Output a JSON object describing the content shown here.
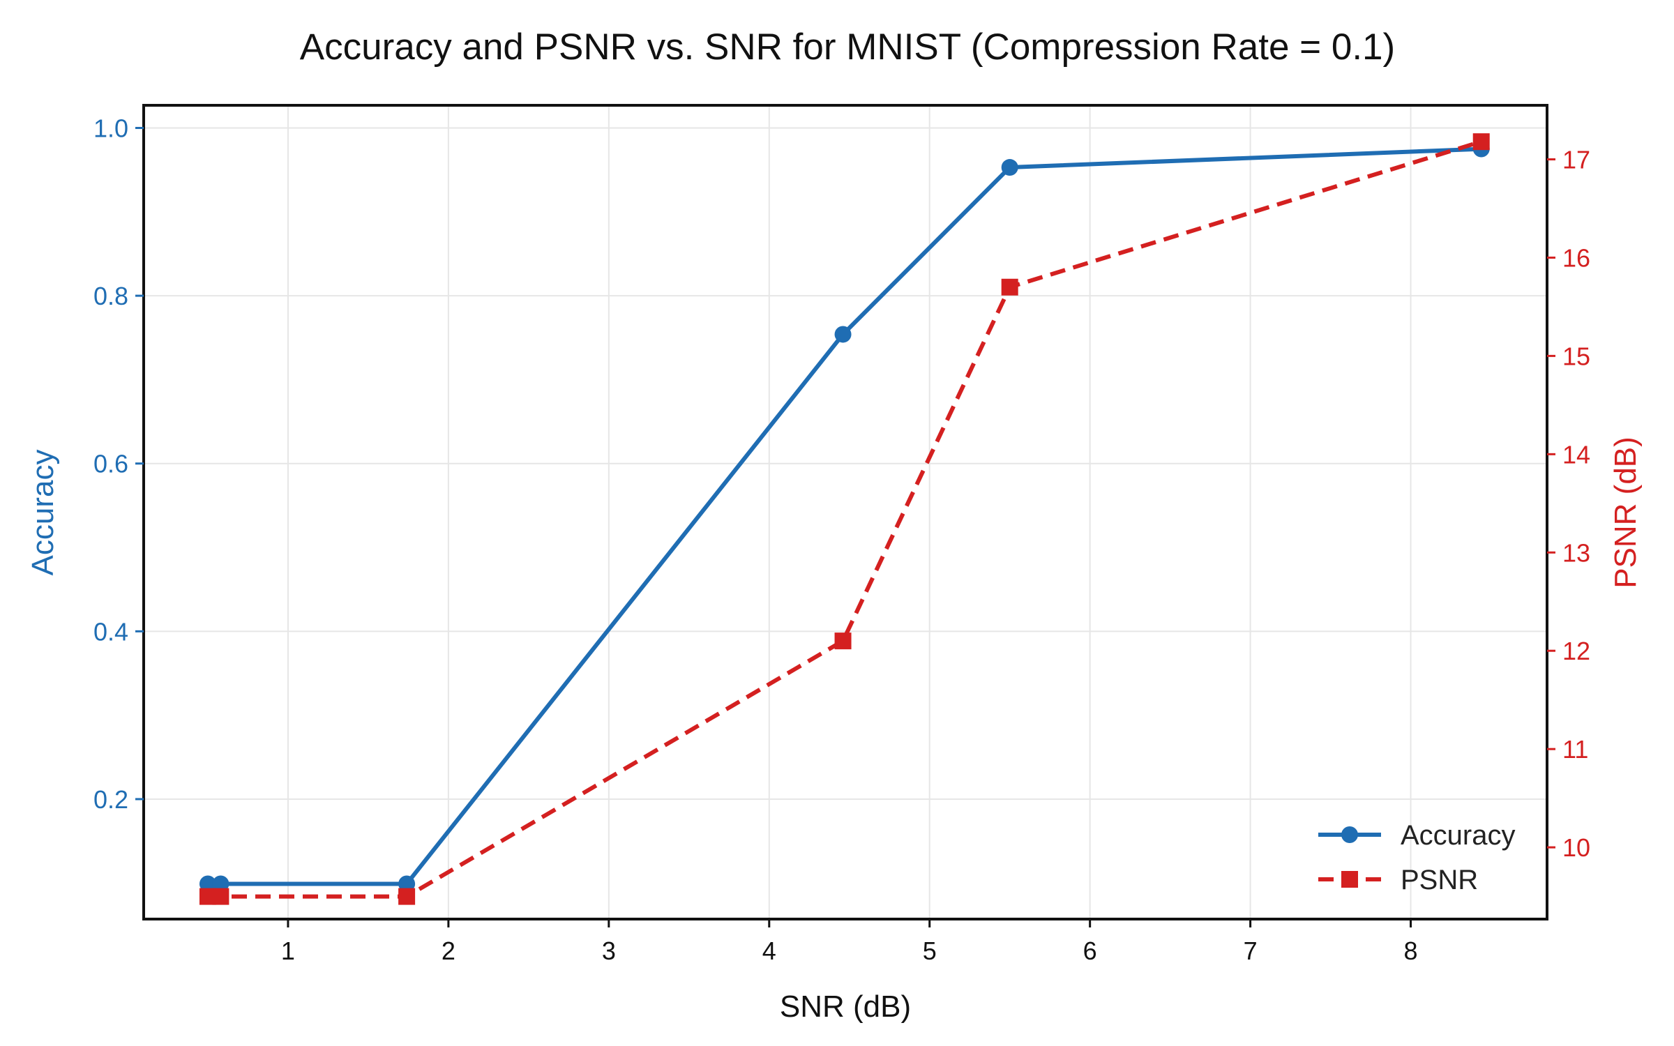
{
  "chart_data": {
    "type": "line",
    "title": "Accuracy and PSNR vs. SNR for MNIST (Compression Rate = 0.1)",
    "xlabel": "SNR (dB)",
    "ylabel_left": "Accuracy",
    "ylabel_right": "PSNR (dB)",
    "xlim": [
      0.1,
      8.85
    ],
    "ylim_left": [
      0.057,
      1.027
    ],
    "ylim_right": [
      9.27,
      17.55
    ],
    "x_ticks": [
      1,
      2,
      3,
      4,
      5,
      6,
      7,
      8
    ],
    "y_left_ticks": [
      0.2,
      0.4,
      0.6,
      0.8,
      1.0
    ],
    "y_left_tick_labels": [
      "0.2",
      "0.4",
      "0.6",
      "0.8",
      "1.0"
    ],
    "y_right_ticks": [
      10,
      11,
      12,
      13,
      14,
      15,
      16,
      17
    ],
    "grid": true,
    "legend_position": "lower-right",
    "series": [
      {
        "name": "Accuracy",
        "axis": "left",
        "color": "#1f6db3",
        "line_style": "solid",
        "marker": "circle",
        "x": [
          0.5,
          0.58,
          1.74,
          4.46,
          5.5,
          8.44
        ],
        "y": [
          0.099,
          0.099,
          0.099,
          0.754,
          0.953,
          0.975
        ]
      },
      {
        "name": "PSNR",
        "axis": "right",
        "color": "#d42020",
        "line_style": "dashed",
        "marker": "square",
        "x": [
          0.5,
          0.58,
          1.74,
          4.46,
          5.5,
          8.44
        ],
        "y": [
          9.5,
          9.5,
          9.5,
          12.1,
          15.7,
          17.18
        ]
      }
    ]
  }
}
